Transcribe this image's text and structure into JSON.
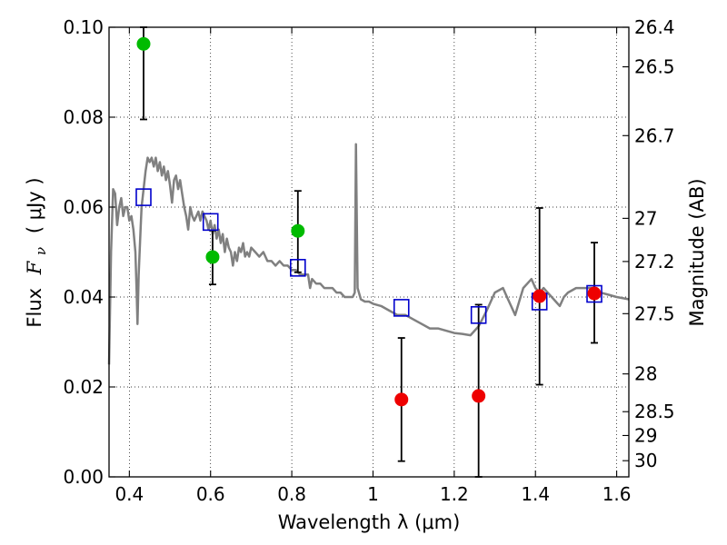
{
  "chart_data": {
    "type": "scatter",
    "xlabel": "Wavelength  λ (μm)",
    "ylabel": "Flux  F_ν  ( μJy )",
    "ylabel_parts": [
      "Flux",
      "F",
      "ν",
      "( μJy )"
    ],
    "y2label": "Magnitude (AB)",
    "xlim": [
      0.35,
      1.63
    ],
    "ylim": [
      0.0,
      0.1
    ],
    "grid": true,
    "x_ticks": [
      0.4,
      0.6,
      0.8,
      1.0,
      1.2,
      1.4,
      1.6
    ],
    "x_tick_labels": [
      "0.4",
      "0.6",
      "0.8",
      "1",
      "1.2",
      "1.4",
      "1.6"
    ],
    "y_ticks": [
      0.0,
      0.02,
      0.04,
      0.06,
      0.08,
      0.1
    ],
    "y_tick_labels": [
      "0.00",
      "0.02",
      "0.04",
      "0.06",
      "0.08",
      "0.10"
    ],
    "y2_ticks": [
      {
        "label": "26.4",
        "flux": 0.1
      },
      {
        "label": "26.5",
        "flux": 0.0912
      },
      {
        "label": "26.7",
        "flux": 0.0759
      },
      {
        "label": "27",
        "flux": 0.0575
      },
      {
        "label": "27.2",
        "flux": 0.0479
      },
      {
        "label": "27.5",
        "flux": 0.0363
      },
      {
        "label": "28",
        "flux": 0.0229
      },
      {
        "label": "28.5",
        "flux": 0.0145
      },
      {
        "label": "29",
        "flux": 0.0092
      },
      {
        "label": "30",
        "flux": 0.0036
      }
    ],
    "series": [
      {
        "kind": "model-spectrum",
        "color": "#808080",
        "points": [
          [
            0.35,
            0.025
          ],
          [
            0.355,
            0.05
          ],
          [
            0.36,
            0.064
          ],
          [
            0.365,
            0.063
          ],
          [
            0.37,
            0.056
          ],
          [
            0.375,
            0.06
          ],
          [
            0.38,
            0.062
          ],
          [
            0.385,
            0.058
          ],
          [
            0.39,
            0.06
          ],
          [
            0.395,
            0.06
          ],
          [
            0.4,
            0.057
          ],
          [
            0.405,
            0.058
          ],
          [
            0.41,
            0.055
          ],
          [
            0.415,
            0.05
          ],
          [
            0.418,
            0.041
          ],
          [
            0.42,
            0.034
          ],
          [
            0.423,
            0.045
          ],
          [
            0.428,
            0.056
          ],
          [
            0.43,
            0.06
          ],
          [
            0.435,
            0.064
          ],
          [
            0.44,
            0.068
          ],
          [
            0.445,
            0.071
          ],
          [
            0.45,
            0.07
          ],
          [
            0.455,
            0.071
          ],
          [
            0.46,
            0.069
          ],
          [
            0.465,
            0.071
          ],
          [
            0.47,
            0.068
          ],
          [
            0.475,
            0.07
          ],
          [
            0.48,
            0.067
          ],
          [
            0.485,
            0.069
          ],
          [
            0.49,
            0.066
          ],
          [
            0.495,
            0.068
          ],
          [
            0.5,
            0.065
          ],
          [
            0.505,
            0.061
          ],
          [
            0.51,
            0.066
          ],
          [
            0.515,
            0.067
          ],
          [
            0.52,
            0.064
          ],
          [
            0.525,
            0.066
          ],
          [
            0.53,
            0.063
          ],
          [
            0.535,
            0.06
          ],
          [
            0.54,
            0.058
          ],
          [
            0.545,
            0.055
          ],
          [
            0.55,
            0.06
          ],
          [
            0.555,
            0.058
          ],
          [
            0.56,
            0.057
          ],
          [
            0.565,
            0.058
          ],
          [
            0.57,
            0.059
          ],
          [
            0.575,
            0.057
          ],
          [
            0.58,
            0.059
          ],
          [
            0.585,
            0.058
          ],
          [
            0.59,
            0.057
          ],
          [
            0.595,
            0.055
          ],
          [
            0.6,
            0.057
          ],
          [
            0.605,
            0.054
          ],
          [
            0.61,
            0.056
          ],
          [
            0.615,
            0.053
          ],
          [
            0.62,
            0.055
          ],
          [
            0.625,
            0.052
          ],
          [
            0.63,
            0.054
          ],
          [
            0.635,
            0.05
          ],
          [
            0.64,
            0.053
          ],
          [
            0.645,
            0.051
          ],
          [
            0.65,
            0.05
          ],
          [
            0.655,
            0.047
          ],
          [
            0.66,
            0.05
          ],
          [
            0.665,
            0.048
          ],
          [
            0.67,
            0.051
          ],
          [
            0.675,
            0.05
          ],
          [
            0.68,
            0.052
          ],
          [
            0.685,
            0.049
          ],
          [
            0.69,
            0.05
          ],
          [
            0.695,
            0.049
          ],
          [
            0.7,
            0.051
          ],
          [
            0.71,
            0.05
          ],
          [
            0.72,
            0.049
          ],
          [
            0.73,
            0.05
          ],
          [
            0.74,
            0.048
          ],
          [
            0.75,
            0.048
          ],
          [
            0.76,
            0.047
          ],
          [
            0.77,
            0.048
          ],
          [
            0.78,
            0.047
          ],
          [
            0.79,
            0.047
          ],
          [
            0.8,
            0.046
          ],
          [
            0.81,
            0.046
          ],
          [
            0.82,
            0.045
          ],
          [
            0.83,
            0.045
          ],
          [
            0.84,
            0.045
          ],
          [
            0.845,
            0.042
          ],
          [
            0.85,
            0.044
          ],
          [
            0.86,
            0.043
          ],
          [
            0.87,
            0.043
          ],
          [
            0.88,
            0.042
          ],
          [
            0.89,
            0.042
          ],
          [
            0.9,
            0.042
          ],
          [
            0.91,
            0.041
          ],
          [
            0.92,
            0.041
          ],
          [
            0.93,
            0.04
          ],
          [
            0.94,
            0.04
          ],
          [
            0.95,
            0.04
          ],
          [
            0.955,
            0.041
          ],
          [
            0.958,
            0.074
          ],
          [
            0.962,
            0.042
          ],
          [
            0.97,
            0.0395
          ],
          [
            0.98,
            0.039
          ],
          [
            0.99,
            0.039
          ],
          [
            1.0,
            0.0385
          ],
          [
            1.02,
            0.038
          ],
          [
            1.04,
            0.037
          ],
          [
            1.06,
            0.036
          ],
          [
            1.08,
            0.036
          ],
          [
            1.1,
            0.035
          ],
          [
            1.12,
            0.034
          ],
          [
            1.14,
            0.033
          ],
          [
            1.16,
            0.033
          ],
          [
            1.18,
            0.0325
          ],
          [
            1.2,
            0.032
          ],
          [
            1.22,
            0.0318
          ],
          [
            1.24,
            0.0315
          ],
          [
            1.26,
            0.0335
          ],
          [
            1.28,
            0.037
          ],
          [
            1.3,
            0.041
          ],
          [
            1.32,
            0.042
          ],
          [
            1.33,
            0.04
          ],
          [
            1.34,
            0.038
          ],
          [
            1.35,
            0.036
          ],
          [
            1.36,
            0.039
          ],
          [
            1.37,
            0.042
          ],
          [
            1.38,
            0.043
          ],
          [
            1.39,
            0.044
          ],
          [
            1.4,
            0.042
          ],
          [
            1.41,
            0.041
          ],
          [
            1.42,
            0.042
          ],
          [
            1.43,
            0.041
          ],
          [
            1.44,
            0.04
          ],
          [
            1.45,
            0.039
          ],
          [
            1.46,
            0.038
          ],
          [
            1.47,
            0.04
          ],
          [
            1.48,
            0.041
          ],
          [
            1.5,
            0.042
          ],
          [
            1.52,
            0.042
          ],
          [
            1.54,
            0.042
          ],
          [
            1.56,
            0.041
          ],
          [
            1.58,
            0.0405
          ],
          [
            1.6,
            0.04
          ],
          [
            1.63,
            0.0395
          ]
        ]
      },
      {
        "kind": "model-photometry",
        "marker": "open-square",
        "color": "#0000cc",
        "points": [
          [
            0.435,
            0.0622
          ],
          [
            0.6,
            0.0567
          ],
          [
            0.815,
            0.0465
          ],
          [
            1.07,
            0.0376
          ],
          [
            1.26,
            0.036
          ],
          [
            1.41,
            0.039
          ],
          [
            1.545,
            0.0407
          ]
        ]
      },
      {
        "kind": "detection",
        "marker": "filled-circle",
        "color": "#00bb00",
        "points": [
          {
            "x": 0.435,
            "y": 0.0963,
            "err_low": 0.0795,
            "err_high": 0.1
          },
          {
            "x": 0.605,
            "y": 0.0489,
            "err_low": 0.0428,
            "err_high": 0.0548
          },
          {
            "x": 0.815,
            "y": 0.0547,
            "err_low": 0.0455,
            "err_high": 0.0636
          }
        ]
      },
      {
        "kind": "low-significance",
        "marker": "filled-circle",
        "color": "#ee0000",
        "points": [
          {
            "x": 1.07,
            "y": 0.0172,
            "err_low": 0.0035,
            "err_high": 0.0309
          },
          {
            "x": 1.26,
            "y": 0.018,
            "err_low": 0.0,
            "err_high": 0.0383
          },
          {
            "x": 1.41,
            "y": 0.0402,
            "err_low": 0.0205,
            "err_high": 0.0598
          },
          {
            "x": 1.545,
            "y": 0.0408,
            "err_low": 0.0298,
            "err_high": 0.0521
          }
        ]
      }
    ]
  }
}
